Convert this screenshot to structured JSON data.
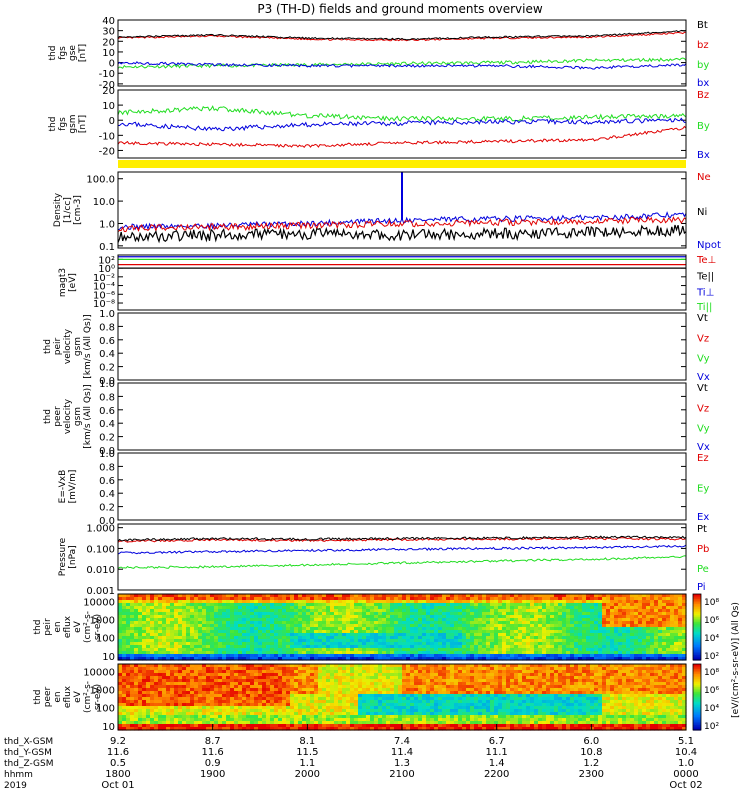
{
  "title": "P3 (TH-D) fields and ground moments overview",
  "colors": {
    "black": "#000000",
    "red": "#e00000",
    "green": "#22dd22",
    "blue": "#0000dd",
    "yellow": "#ffee00"
  },
  "panels": [
    {
      "ylabel": [
        "thd",
        "fgs",
        "gse",
        "[nT]"
      ],
      "ticks": [
        {
          "v": 40,
          "t": "40"
        },
        {
          "v": 30,
          "t": "30"
        },
        {
          "v": 20,
          "t": "20"
        },
        {
          "v": 10,
          "t": "10"
        },
        {
          "v": 0,
          "t": "0"
        },
        {
          "v": -10,
          "t": "-10"
        },
        {
          "v": -20,
          "t": "-20"
        }
      ],
      "legend": [
        {
          "t": "Bt",
          "c": "black"
        },
        {
          "t": "bz",
          "c": "red"
        },
        {
          "t": "by",
          "c": "green"
        },
        {
          "t": "bx",
          "c": "blue"
        }
      ]
    },
    {
      "ylabel": [
        "thd",
        "fgs",
        "gsm",
        "[nT]"
      ],
      "ticks": [
        {
          "v": 20,
          "t": "20"
        },
        {
          "v": 10,
          "t": "10"
        },
        {
          "v": 0,
          "t": "0"
        },
        {
          "v": -10,
          "t": "-10"
        },
        {
          "v": -20,
          "t": "-20"
        }
      ],
      "legend": [
        {
          "t": "Bz",
          "c": "red"
        },
        {
          "t": "By",
          "c": "green"
        },
        {
          "t": "Bx",
          "c": "blue"
        }
      ]
    },
    {
      "ylabel": [
        "Density",
        "[1/cc]",
        "[cm-3]"
      ],
      "ticks": [
        {
          "v": 100,
          "t": "100.0"
        },
        {
          "v": 10,
          "t": "10.0"
        },
        {
          "v": 1,
          "t": "1.0"
        },
        {
          "v": 0.1,
          "t": "0.1"
        }
      ],
      "legend": [
        {
          "t": "Ne",
          "c": "red"
        },
        {
          "t": "Ni",
          "c": "black"
        },
        {
          "t": "Npot",
          "c": "blue"
        }
      ]
    },
    {
      "ylabel": [
        "magt3",
        "[eV]"
      ],
      "ticks": [
        {
          "v": 1,
          "t": "10²"
        },
        {
          "v": 2,
          "t": "10⁰"
        },
        {
          "v": 3,
          "t": "10⁻²"
        },
        {
          "v": 4,
          "t": "10⁻⁴"
        },
        {
          "v": 5,
          "t": "10⁻⁶"
        },
        {
          "v": 6,
          "t": "10⁻⁸"
        }
      ],
      "legend": [
        {
          "t": "Te⊥",
          "c": "red"
        },
        {
          "t": "Te||",
          "c": "black"
        },
        {
          "t": "Ti⊥",
          "c": "blue"
        },
        {
          "t": "Ti||",
          "c": "green"
        }
      ]
    },
    {
      "ylabel": [
        "thd",
        "peir",
        "velocity",
        "gsm",
        "[km/s (All Qs)]"
      ],
      "ticks": [
        {
          "v": 1,
          "t": "1.0"
        },
        {
          "v": 0.8,
          "t": "0.8"
        },
        {
          "v": 0.6,
          "t": "0.6"
        },
        {
          "v": 0.4,
          "t": "0.4"
        },
        {
          "v": 0.2,
          "t": "0.2"
        },
        {
          "v": 0,
          "t": "0.0"
        }
      ],
      "legend": [
        {
          "t": "Vt",
          "c": "black"
        },
        {
          "t": "Vz",
          "c": "red"
        },
        {
          "t": "Vy",
          "c": "green"
        },
        {
          "t": "Vx",
          "c": "blue"
        }
      ]
    },
    {
      "ylabel": [
        "thd",
        "peer",
        "velocity",
        "gsm",
        "[km/s (All Qs)]"
      ],
      "ticks": [
        {
          "v": 1,
          "t": "1.0"
        },
        {
          "v": 0.8,
          "t": "0.8"
        },
        {
          "v": 0.6,
          "t": "0.6"
        },
        {
          "v": 0.4,
          "t": "0.4"
        },
        {
          "v": 0.2,
          "t": "0.2"
        },
        {
          "v": 0,
          "t": "0.0"
        }
      ],
      "legend": [
        {
          "t": "Vt",
          "c": "black"
        },
        {
          "t": "Vz",
          "c": "red"
        },
        {
          "t": "Vy",
          "c": "green"
        },
        {
          "t": "Vx",
          "c": "blue"
        }
      ]
    },
    {
      "ylabel": [
        "E=-VxB",
        "[mV/m]"
      ],
      "ticks": [
        {
          "v": 1,
          "t": "1.0"
        },
        {
          "v": 0.8,
          "t": "0.8"
        },
        {
          "v": 0.6,
          "t": "0.6"
        },
        {
          "v": 0.4,
          "t": "0.4"
        },
        {
          "v": 0.2,
          "t": "0.2"
        },
        {
          "v": 0,
          "t": "0.0"
        }
      ],
      "legend": [
        {
          "t": "Ez",
          "c": "red"
        },
        {
          "t": "Ey",
          "c": "green"
        },
        {
          "t": "Ex",
          "c": "blue"
        }
      ]
    },
    {
      "ylabel": [
        "Pressure",
        "[nPa]"
      ],
      "ticks": [
        {
          "v": 1,
          "t": "1.000"
        },
        {
          "v": 0.1,
          "t": "0.100"
        },
        {
          "v": 0.01,
          "t": "0.010"
        },
        {
          "v": 0.001,
          "t": "0.001"
        }
      ],
      "legend": [
        {
          "t": "Pt",
          "c": "black"
        },
        {
          "t": "Pb",
          "c": "red"
        },
        {
          "t": "Pe",
          "c": "green"
        },
        {
          "t": "Pi",
          "c": "blue"
        }
      ]
    },
    {
      "ylabel": [
        "thd",
        "peir",
        "en",
        "eflux",
        "eV",
        "(cm²-s-",
        "sr-eV)"
      ],
      "ticks": [
        {
          "v": 10000,
          "t": "10000"
        },
        {
          "v": 1000,
          "t": "1000"
        },
        {
          "v": 100,
          "t": "100"
        },
        {
          "v": 10,
          "t": "10"
        }
      ]
    },
    {
      "ylabel": [
        "thd",
        "peer",
        "en",
        "eflux",
        "eV",
        "(cm²-s-",
        "sr-eV)"
      ],
      "ticks": [
        {
          "v": 10000,
          "t": "10000"
        },
        {
          "v": 1000,
          "t": "1000"
        },
        {
          "v": 100,
          "t": "100"
        },
        {
          "v": 10,
          "t": "10"
        }
      ]
    }
  ],
  "colorbar": {
    "ticks": [
      "10⁸",
      "10⁶",
      "10⁴",
      "10²"
    ],
    "label": "[eV/(cm²-s-sr-eV)] (All Qs)"
  },
  "axis": {
    "rows": [
      {
        "label": "thd_X-GSM",
        "values": [
          "9.2",
          "8.7",
          "8.1",
          "7.4",
          "6.7",
          "6.0",
          "5.1"
        ]
      },
      {
        "label": "thd_Y-GSM",
        "values": [
          "11.6",
          "11.6",
          "11.5",
          "11.4",
          "11.1",
          "10.8",
          "10.4"
        ]
      },
      {
        "label": "thd_Z-GSM",
        "values": [
          "0.5",
          "0.9",
          "1.1",
          "1.3",
          "1.4",
          "1.2",
          "1.0"
        ]
      },
      {
        "label": "hhmm",
        "values": [
          "1800",
          "1900",
          "2000",
          "2100",
          "2200",
          "2300",
          "0000"
        ]
      },
      {
        "label": "2019",
        "values": [
          "Oct 01",
          "",
          "",
          "",
          "",
          "",
          "Oct 02"
        ]
      }
    ]
  },
  "chart_data": [
    {
      "type": "line",
      "title": "P3 (TH-D) fields and ground moments overview",
      "ylabel": "thd fgs gse [nT]",
      "ylim": [
        -20,
        40
      ],
      "x": [
        "1800",
        "1900",
        "2000",
        "2100",
        "2200",
        "2300",
        "0000"
      ],
      "series": [
        {
          "name": "Bt",
          "values": [
            24,
            26,
            23,
            22,
            24,
            25,
            30
          ]
        },
        {
          "name": "bz",
          "values": [
            23,
            25,
            22,
            21,
            23,
            24,
            28
          ]
        },
        {
          "name": "by",
          "values": [
            -4,
            -3,
            -2,
            -1,
            0,
            2,
            3
          ]
        },
        {
          "name": "bx",
          "values": [
            0,
            -2,
            -3,
            -3,
            -3,
            -5,
            -2
          ]
        }
      ]
    },
    {
      "type": "line",
      "ylabel": "thd fgs gsm [nT]",
      "ylim": [
        -25,
        20
      ],
      "x": [
        "1800",
        "1900",
        "2000",
        "2100",
        "2200",
        "2300",
        "0000"
      ],
      "series": [
        {
          "name": "Bz",
          "values": [
            -15,
            -16,
            -17,
            -15,
            -14,
            -13,
            -5
          ]
        },
        {
          "name": "By",
          "values": [
            5,
            8,
            3,
            1,
            1,
            2,
            3
          ]
        },
        {
          "name": "Bx",
          "values": [
            -2,
            -6,
            -3,
            -2,
            -1,
            -1,
            0
          ]
        }
      ]
    },
    {
      "type": "line",
      "ylabel": "Density [1/cc] [cm-3]",
      "ylim": [
        0.1,
        200
      ],
      "yscale": "log",
      "x": [
        "1800",
        "1900",
        "2000",
        "2100",
        "2200",
        "2300",
        "0000"
      ],
      "series": [
        {
          "name": "Ne",
          "values": [
            0.6,
            0.7,
            0.8,
            1.0,
            1.1,
            1.3,
            1.5
          ]
        },
        {
          "name": "Ni",
          "values": [
            0.25,
            0.3,
            0.35,
            0.3,
            0.35,
            0.4,
            0.5
          ]
        },
        {
          "name": "Npot",
          "values": [
            0.7,
            0.8,
            1.0,
            1.4,
            1.6,
            1.8,
            2.5
          ]
        }
      ]
    },
    {
      "type": "line",
      "ylabel": "Pressure [nPa]",
      "ylim": [
        0.001,
        1
      ],
      "yscale": "log",
      "x": [
        "1800",
        "1900",
        "2000",
        "2100",
        "2200",
        "2300",
        "0000"
      ],
      "series": [
        {
          "name": "Pt",
          "values": [
            0.25,
            0.3,
            0.28,
            0.3,
            0.32,
            0.35,
            0.35
          ]
        },
        {
          "name": "Pb",
          "values": [
            0.22,
            0.26,
            0.24,
            0.27,
            0.28,
            0.3,
            0.28
          ]
        },
        {
          "name": "Pe",
          "values": [
            0.012,
            0.013,
            0.016,
            0.02,
            0.025,
            0.03,
            0.04
          ]
        },
        {
          "name": "Pi",
          "values": [
            0.06,
            0.07,
            0.08,
            0.09,
            0.1,
            0.11,
            0.13
          ]
        }
      ]
    },
    {
      "type": "heatmap",
      "ylabel": "thd peir en eflux",
      "ylim": [
        5,
        25000
      ],
      "yscale": "log",
      "x": [
        "1800",
        "1900",
        "2000",
        "2100",
        "2200",
        "2300",
        "0000"
      ]
    },
    {
      "type": "heatmap",
      "ylabel": "thd peer en eflux",
      "ylim": [
        5,
        25000
      ],
      "yscale": "log",
      "x": [
        "1800",
        "1900",
        "2000",
        "2100",
        "2200",
        "2300",
        "0000"
      ]
    }
  ]
}
